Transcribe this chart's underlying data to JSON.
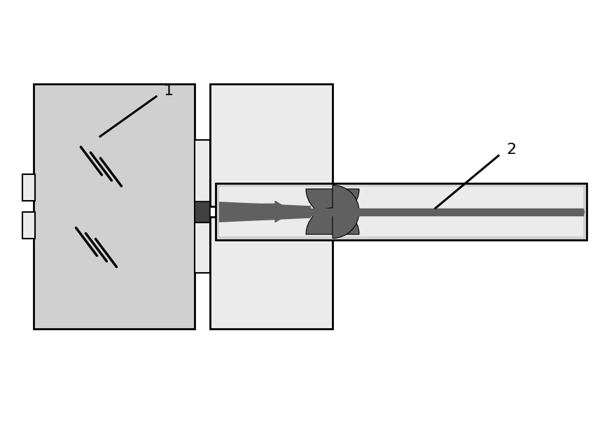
{
  "bg_color": "#ffffff",
  "light_gray": "#d0d0d0",
  "lighter_gray": "#ebebeb",
  "mid_gray": "#a0a0a0",
  "dark_gray": "#606060",
  "darker_gray": "#404040",
  "black": "#000000",
  "label1": "1",
  "label2": "2"
}
